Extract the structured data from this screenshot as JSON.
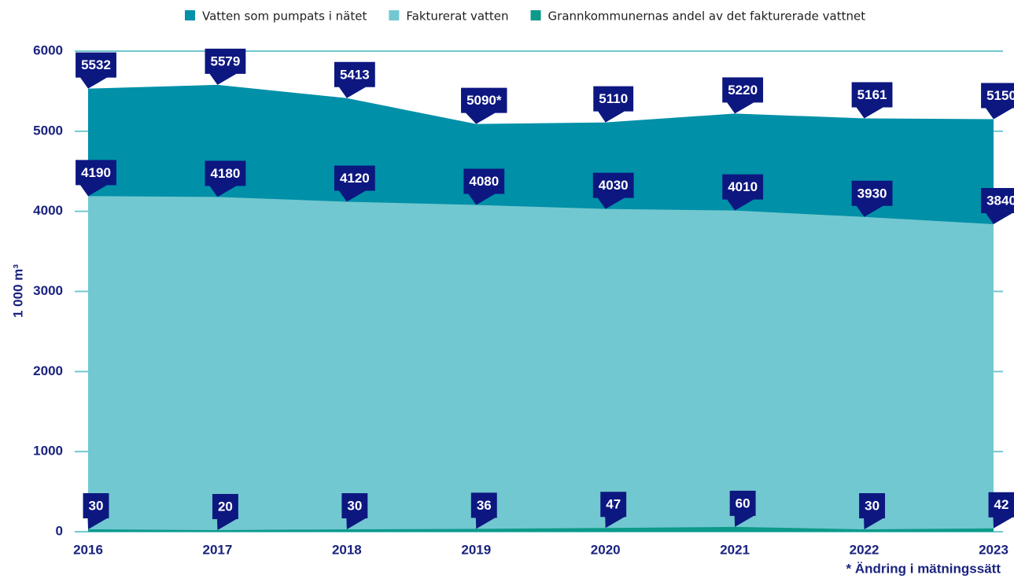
{
  "chart_data": {
    "type": "area",
    "y_label": "1 000 m³",
    "annotation": "* Ändring i mätningssätt",
    "categories": [
      "2016",
      "2017",
      "2018",
      "2019",
      "2020",
      "2021",
      "2022",
      "2023"
    ],
    "series": [
      {
        "name": "Vatten som pumpats i nätet",
        "color": "#0090a8",
        "values": [
          5532,
          5579,
          5413,
          5090,
          5110,
          5220,
          5161,
          5150
        ],
        "value_labels": [
          "5532",
          "5579",
          "5413",
          "5090*",
          "5110",
          "5220",
          "5161",
          "5150"
        ]
      },
      {
        "name": "Fakturerat vatten",
        "color": "#72c8d0",
        "values": [
          4190,
          4180,
          4120,
          4080,
          4030,
          4010,
          3930,
          3840
        ]
      },
      {
        "name": "Grannkommunernas andel av det fakturerade vattnet",
        "color": "#0c9a8a",
        "values": [
          30,
          20,
          30,
          36,
          47,
          60,
          30,
          42
        ]
      }
    ],
    "ylim": [
      0,
      6000
    ],
    "yticks": [
      0,
      1000,
      2000,
      3000,
      4000,
      5000,
      6000
    ],
    "grid": true,
    "legend": "top"
  }
}
